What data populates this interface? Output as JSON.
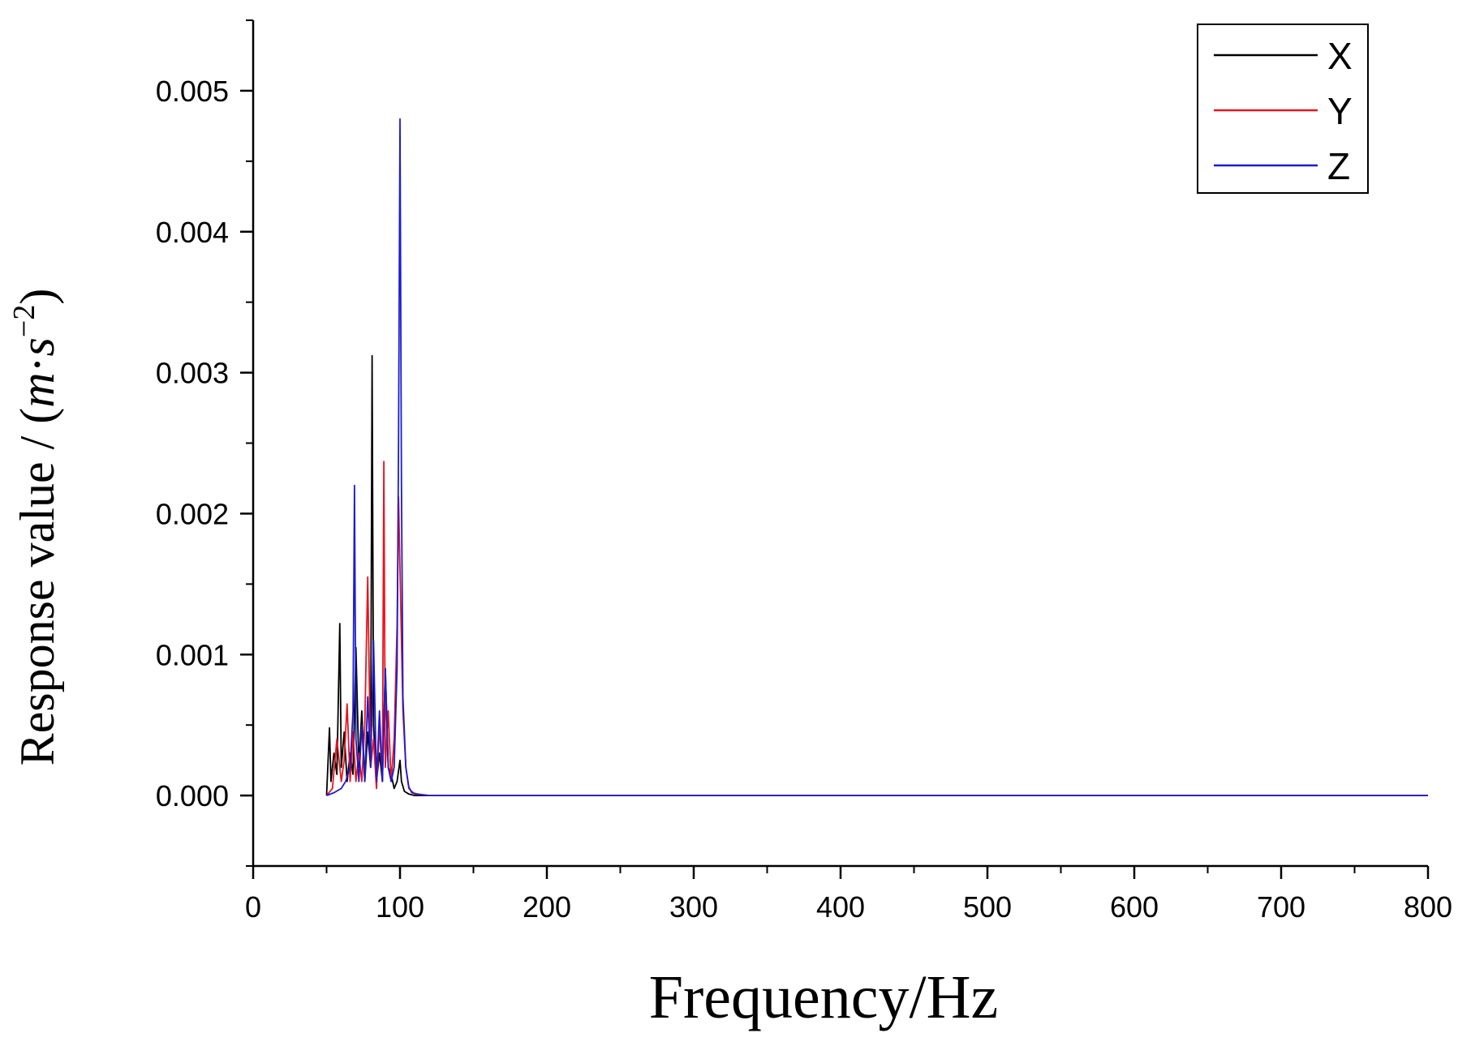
{
  "chart_data": {
    "type": "line",
    "xlabel": "Frequency/Hz",
    "ylabel": "Response value / (m·s−2)",
    "ylabel_unit_parts": {
      "base": "Response value / (",
      "m": "m",
      "dot": "·",
      "s": "s",
      "exp": "−2",
      "close": ")"
    },
    "xlim": [
      0,
      800
    ],
    "ylim": [
      -0.0005,
      0.0055
    ],
    "x_ticks": [
      0,
      100,
      200,
      300,
      400,
      500,
      600,
      700,
      800
    ],
    "x_tick_labels": [
      "0",
      "100",
      "200",
      "300",
      "400",
      "500",
      "600",
      "700",
      "800"
    ],
    "y_ticks": [
      0.0,
      0.001,
      0.002,
      0.003,
      0.004,
      0.005
    ],
    "y_tick_labels": [
      "0.000",
      "0.001",
      "0.002",
      "0.003",
      "0.004",
      "0.005"
    ],
    "grid": false,
    "legend_position": "top-right",
    "series": [
      {
        "name": "X",
        "color": "#000000",
        "x": [
          50,
          52,
          53,
          55,
          57,
          59,
          60,
          62,
          64,
          66,
          68,
          70,
          72,
          74,
          76,
          78,
          80,
          81,
          82,
          84,
          86,
          88,
          90,
          92,
          94,
          96,
          98,
          100,
          101,
          103,
          106,
          110,
          120,
          140,
          180,
          800
        ],
        "y": [
          0.0,
          0.00048,
          0.0001,
          0.0003,
          0.00015,
          0.00122,
          0.0002,
          0.00045,
          0.0001,
          0.0003,
          0.00015,
          0.00105,
          0.0002,
          0.0006,
          0.0001,
          0.00045,
          0.0002,
          0.00312,
          0.0005,
          0.0001,
          0.0003,
          0.0001,
          0.0009,
          0.0002,
          0.00015,
          5e-05,
          0.0001,
          0.00025,
          0.0001,
          3e-05,
          1e-05,
          0.0,
          0.0,
          0.0,
          0.0,
          0.0
        ]
      },
      {
        "name": "Y",
        "color": "#e8141e",
        "x": [
          50,
          54,
          57,
          60,
          62,
          64,
          66,
          68,
          70,
          72,
          74,
          76,
          78,
          80,
          82,
          84,
          86,
          88,
          89,
          90,
          92,
          94,
          96,
          98,
          99,
          100,
          102,
          104,
          106,
          110,
          120,
          140,
          180,
          800
        ],
        "y": [
          0.0,
          5e-05,
          0.0004,
          0.0001,
          0.00025,
          0.00065,
          0.0001,
          0.00045,
          0.0001,
          0.0003,
          0.0001,
          0.0005,
          0.00155,
          0.0002,
          0.0004,
          5e-05,
          0.0005,
          0.0001,
          0.00237,
          0.0002,
          0.0006,
          0.0001,
          0.0004,
          0.0012,
          0.00212,
          0.0016,
          0.0006,
          0.0002,
          5e-05,
          1e-05,
          0.0,
          0.0,
          0.0,
          0.0
        ]
      },
      {
        "name": "Z",
        "color": "#1c1ccf",
        "x": [
          50,
          55,
          60,
          63,
          66,
          68,
          69,
          70,
          72,
          74,
          76,
          78,
          80,
          82,
          84,
          86,
          88,
          90,
          92,
          94,
          96,
          98,
          99,
          100,
          101,
          102,
          104,
          106,
          108,
          112,
          120,
          140,
          180,
          800
        ],
        "y": [
          0.0,
          2e-05,
          5e-05,
          0.0001,
          0.0002,
          0.0006,
          0.0022,
          0.0004,
          0.0001,
          0.0005,
          0.0001,
          0.0007,
          0.0002,
          0.0011,
          0.0001,
          0.0006,
          0.0001,
          0.0009,
          0.0002,
          0.0001,
          0.0002,
          0.0009,
          0.0025,
          0.0048,
          0.0022,
          0.0007,
          0.0002,
          6e-05,
          2e-05,
          1e-05,
          0.0,
          0.0,
          0.0,
          0.0
        ]
      }
    ]
  }
}
